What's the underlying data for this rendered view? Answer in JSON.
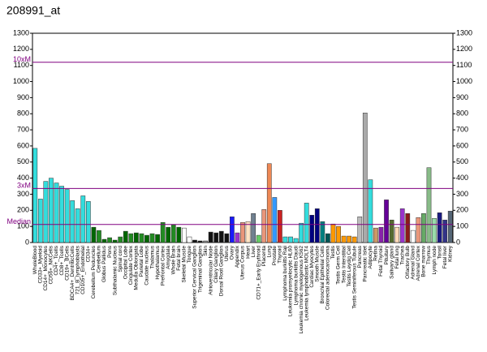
{
  "chart_data": {
    "type": "bar",
    "title": "208991_at",
    "categories": [
      "WholeBlood",
      "CD33+_Myeloid",
      "CD14+_Monocytes",
      "CD56+_NKCells",
      "CD4+_Tcells",
      "CD8+_Tcells",
      "CD19+_BCells",
      "BDCA4+_DentriticCells",
      "721_B_lymphoblasts",
      "CD105+_Endothelial",
      "CD34+",
      "Cerebellum Peduncles",
      "Cerebellum",
      "Globus Pallidus",
      "Pons",
      "Subthalamic Nucleus",
      "Spinal cord",
      "Occipital Lobe",
      "Cingulate Cortex",
      "Medulla Oblongata",
      "Parietal Lobe",
      "Caudate nucleus",
      "Thalamus",
      "Hypothalamus",
      "Prefrontal Cortex",
      "Amygdala",
      "Whole Brain",
      "Fetal brain",
      "Skeletal Muscle",
      "Tongue",
      "Superior Cervical Ganglion",
      "Trigeminal Ganglion",
      "Skin",
      "Atrioventricular Node",
      "Ciliary Ganglion",
      "Dorsal Root Ganglion",
      "Uterus",
      "Ovary",
      "Appendix",
      "Uterus Corpus",
      "Heart",
      "Liver",
      "CD71+_Early Erythroid",
      "Placenta",
      "Lung",
      "Prostate",
      "Thyroid",
      "Lymphoma burkitts Raji",
      "Leukemia promyelocytic HL60",
      "Lymphoma burkitts Daudi",
      "Leukemia chronic myelogenous K562",
      "Leukemia lymphoblastic MOLT4",
      "Cardiac Myocytes",
      "Smooth Muscle",
      "Bronchial Epithelial Cells",
      "Colorectal adenocarcinoma",
      "Testis",
      "Testis Germ Cell",
      "Testis Interstitial",
      "Testis Leydig Cell",
      "Testis Seminiferous Tubule",
      "Pancreas",
      "Pancreatic Islet",
      "Adipocyte",
      "Retina",
      "Fetal Thyroid",
      "Pituitary",
      "Salivary gland",
      "Fetal lung",
      "Trachea",
      "Olfactory Bulb",
      "Adrenal Gland",
      "Adrenal Cortex",
      "Bone marrow",
      "Thymus",
      "Lymph node",
      "Tonsil",
      "Fetal liver",
      "Kidney"
    ],
    "values": [
      585,
      270,
      380,
      400,
      370,
      350,
      330,
      260,
      210,
      290,
      255,
      95,
      75,
      20,
      30,
      15,
      35,
      70,
      55,
      60,
      55,
      45,
      55,
      50,
      125,
      95,
      110,
      95,
      90,
      35,
      15,
      10,
      10,
      65,
      60,
      70,
      55,
      160,
      60,
      125,
      130,
      180,
      45,
      205,
      490,
      280,
      200,
      35,
      35,
      25,
      120,
      245,
      170,
      210,
      130,
      55,
      115,
      100,
      40,
      40,
      35,
      160,
      805,
      390,
      90,
      95,
      265,
      140,
      95,
      210,
      180,
      75,
      155,
      180,
      465,
      150,
      185,
      140,
      195
    ],
    "colors": [
      "#33dddd",
      "#33dddd",
      "#33dddd",
      "#33dddd",
      "#33dddd",
      "#33dddd",
      "#33dddd",
      "#33dddd",
      "#33dddd",
      "#33dddd",
      "#33dddd",
      "#006600",
      "#228b22",
      "#006600",
      "#228b22",
      "#006600",
      "#228b22",
      "#006600",
      "#228b22",
      "#006600",
      "#228b22",
      "#006600",
      "#228b22",
      "#006600",
      "#228b22",
      "#006600",
      "#228b22",
      "#006600",
      "#ffffff",
      "#ffffff",
      "#111111",
      "#111111",
      "#888888",
      "#111111",
      "#111111",
      "#111111",
      "#111111",
      "#1a1aff",
      "#9933cc",
      "#e9967a",
      "#ffe4c4",
      "#708090",
      "#66cc66",
      "#e9967a",
      "#ee8855",
      "#3399ff",
      "#cc2222",
      "#33dddd",
      "#33dddd",
      "#33dddd",
      "#33dddd",
      "#33dddd",
      "#000080",
      "#000080",
      "#008080",
      "#005555",
      "#ff9900",
      "#ff9900",
      "#ff9900",
      "#ff9900",
      "#ff9900",
      "#bbbbbb",
      "#aaaaaa",
      "#33dddd",
      "#cc9966",
      "#8822aa",
      "#660099",
      "#556b2f",
      "#ffdab9",
      "#9933cc",
      "#8b1a1a",
      "#ffffff",
      "#e9967a",
      "#66aa66",
      "#88bb88",
      "#99ddaa",
      "#1a1a80",
      "#333388",
      "#556677"
    ],
    "ylim": [
      0,
      1300
    ],
    "yticks": [
      0,
      100,
      200,
      300,
      400,
      500,
      600,
      700,
      800,
      900,
      1000,
      1100,
      1200,
      1300
    ],
    "ref_lines": [
      {
        "label": "10xM",
        "value": 1120
      },
      {
        "label": "3xM",
        "value": 336
      },
      {
        "label": "Median",
        "value": 112
      }
    ],
    "ref_color": "#800080"
  }
}
